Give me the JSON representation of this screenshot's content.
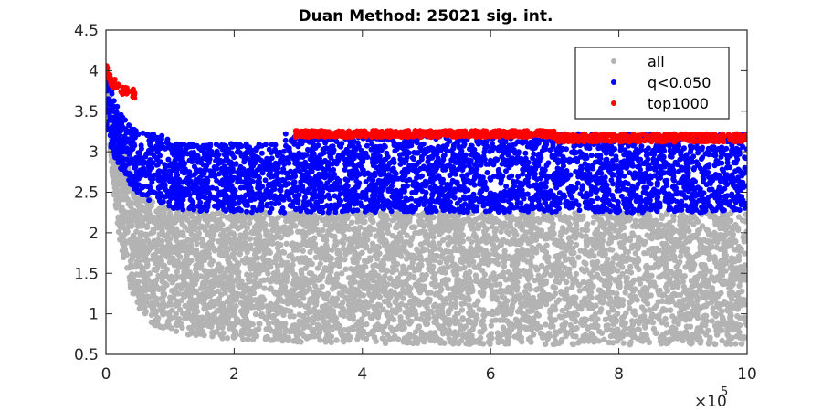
{
  "chart_data": {
    "type": "scatter",
    "title": "Duan Method: 25021 sig. int.",
    "xlabel": "",
    "ylabel": "",
    "xlim": [
      0,
      1000000
    ],
    "ylim": [
      0.5,
      4.5
    ],
    "x_ticks": [
      0,
      200000,
      400000,
      600000,
      800000,
      1000000
    ],
    "x_tick_labels": [
      "0",
      "2",
      "4",
      "6",
      "8",
      "10"
    ],
    "x_exponent_label": "×10",
    "x_exponent_power": "5",
    "y_ticks": [
      0.5,
      1,
      1.5,
      2,
      2.5,
      3,
      3.5,
      4,
      4.5
    ],
    "y_tick_labels": [
      "0.5",
      "1",
      "1.5",
      "2",
      "2.5",
      "3",
      "3.5",
      "4",
      "4.5"
    ],
    "grid": false,
    "legend_position": "top-right",
    "series": [
      {
        "name": "all",
        "color": "#b3b3b3",
        "sample_points": [
          [
            5000,
            3.6
          ],
          [
            20000,
            2.6
          ],
          [
            50000,
            1.8
          ],
          [
            100000,
            1.3
          ],
          [
            200000,
            1.0
          ],
          [
            400000,
            0.9
          ],
          [
            600000,
            0.85
          ],
          [
            800000,
            0.8
          ],
          [
            1000000,
            0.75
          ],
          [
            300000,
            2.1
          ],
          [
            500000,
            1.5
          ],
          [
            700000,
            1.2
          ],
          [
            900000,
            2.0
          ]
        ]
      },
      {
        "name": "q<0.050",
        "color": "#0000ff",
        "sample_points": [
          [
            5000,
            4.05
          ],
          [
            20000,
            3.6
          ],
          [
            50000,
            3.1
          ],
          [
            100000,
            2.5
          ],
          [
            200000,
            2.3
          ],
          [
            300000,
            2.9
          ],
          [
            500000,
            2.6
          ],
          [
            700000,
            2.35
          ],
          [
            900000,
            2.9
          ],
          [
            1000000,
            2.3
          ]
        ]
      },
      {
        "name": "top1000",
        "color": "#ff0000",
        "sample_points": [
          [
            5000,
            4.0
          ],
          [
            15000,
            3.85
          ],
          [
            30000,
            3.8
          ],
          [
            40000,
            3.7
          ],
          [
            300000,
            3.25
          ],
          [
            450000,
            3.2
          ],
          [
            600000,
            3.25
          ],
          [
            800000,
            3.15
          ],
          [
            1000000,
            3.2
          ]
        ]
      }
    ]
  }
}
